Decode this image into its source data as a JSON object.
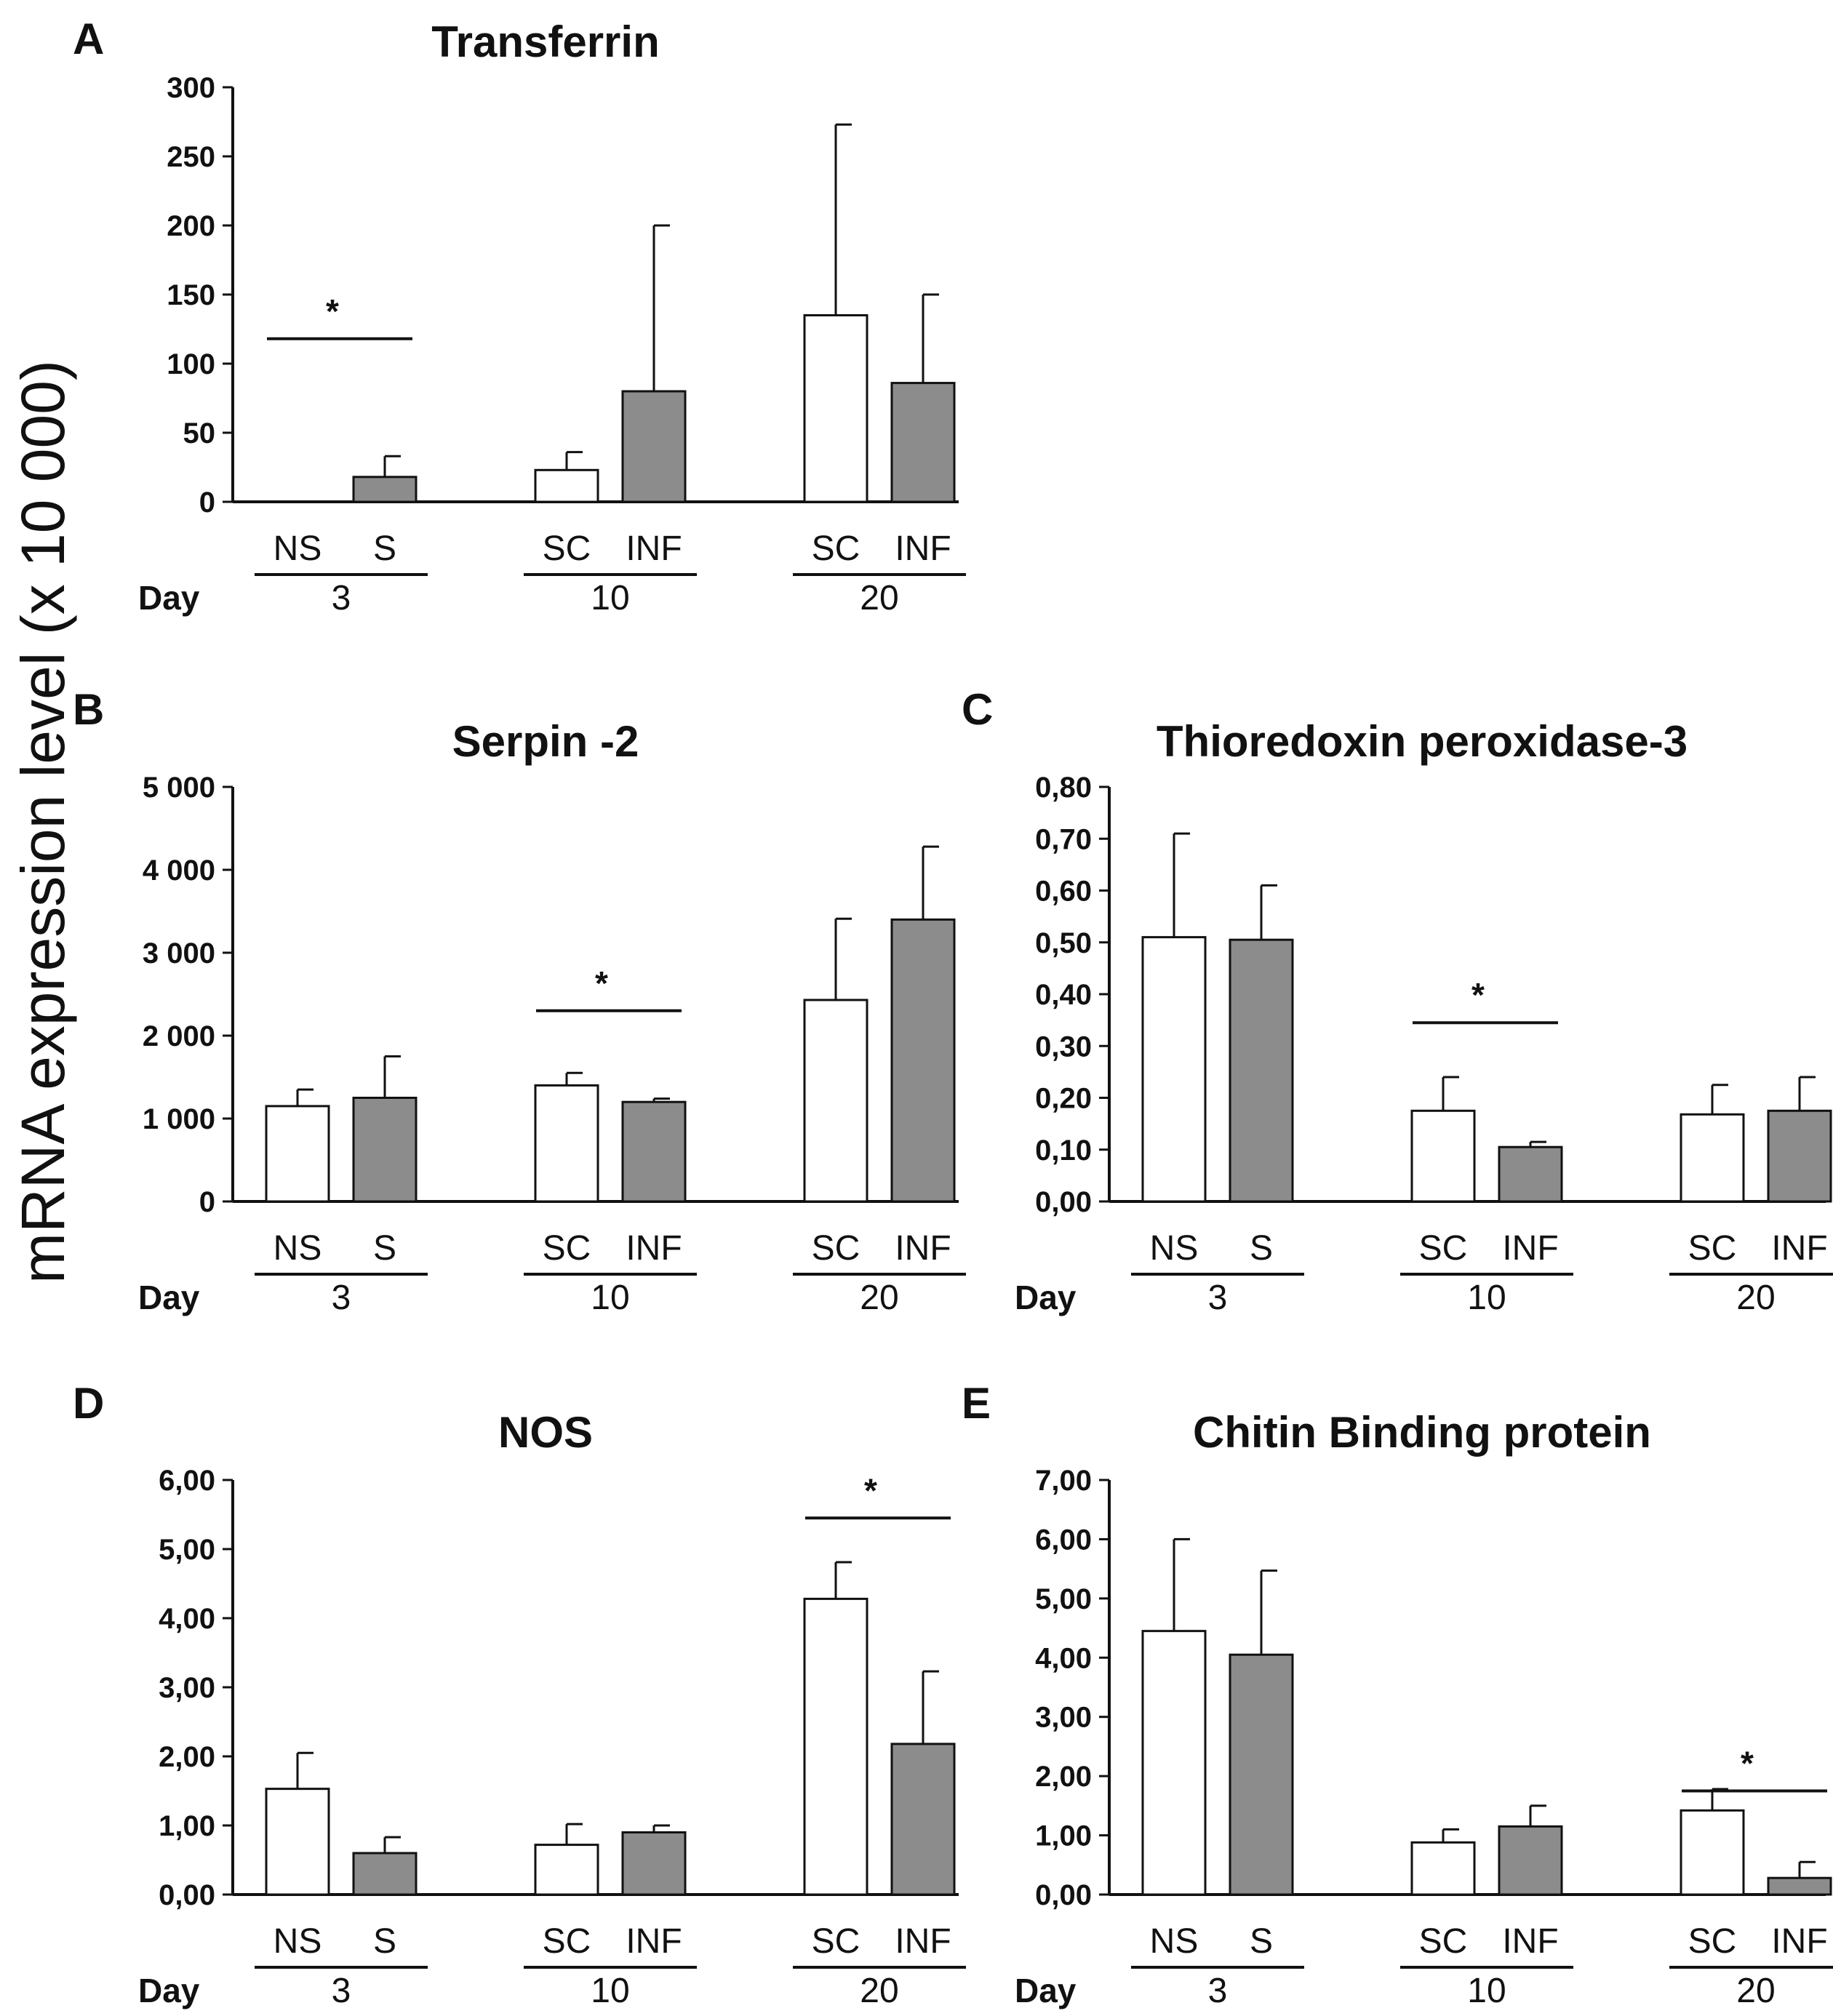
{
  "y_axis_label": "mRNA expression level (x 10 000)",
  "colors": {
    "sc_bar": "#ffffff",
    "inf_bar": "#8c8c8c",
    "ink": "#111111"
  },
  "chart_data": [
    {
      "panel": "A",
      "type": "bar",
      "title": "Transferrin",
      "ylim": [
        0,
        300
      ],
      "yticks": [
        "0",
        "50",
        "100",
        "150",
        "200",
        "250",
        "300"
      ],
      "day_label": "Day",
      "groups": [
        {
          "day": "3",
          "bars": [
            {
              "category": "NS",
              "value": 0,
              "error": 0
            },
            {
              "category": "S",
              "value": 18,
              "error": 15
            }
          ]
        },
        {
          "day": "10",
          "bars": [
            {
              "category": "SC",
              "value": 23,
              "error": 13
            },
            {
              "category": "INF",
              "value": 80,
              "error": 120
            }
          ]
        },
        {
          "day": "20",
          "bars": [
            {
              "category": "SC",
              "value": 135,
              "error": 138
            },
            {
              "category": "INF",
              "value": 86,
              "error": 64
            }
          ]
        }
      ],
      "significance": [
        {
          "group": 0,
          "label": "*"
        }
      ]
    },
    {
      "panel": "B",
      "type": "bar",
      "title": "Serpin  -2",
      "ylim": [
        0,
        5000
      ],
      "yticks": [
        "0",
        "1 000",
        "2 000",
        "3 000",
        "4 000",
        "5 000"
      ],
      "day_label": "Day",
      "groups": [
        {
          "day": "3",
          "bars": [
            {
              "category": "NS",
              "value": 1150,
              "error": 200
            },
            {
              "category": "S",
              "value": 1250,
              "error": 500
            }
          ]
        },
        {
          "day": "10",
          "bars": [
            {
              "category": "SC",
              "value": 1400,
              "error": 150
            },
            {
              "category": "INF",
              "value": 1200,
              "error": 40
            }
          ]
        },
        {
          "day": "20",
          "bars": [
            {
              "category": "SC",
              "value": 2430,
              "error": 980
            },
            {
              "category": "INF",
              "value": 3400,
              "error": 880
            }
          ]
        }
      ],
      "significance": [
        {
          "group": 1,
          "label": "*"
        }
      ]
    },
    {
      "panel": "C",
      "type": "bar",
      "title": "Thioredoxin   peroxidase-3",
      "ylim": [
        0,
        0.8
      ],
      "yticks": [
        "0,00",
        "0,10",
        "0,20",
        "0,30",
        "0,40",
        "0,50",
        "0,60",
        "0,70",
        "0,80"
      ],
      "day_label": "Day",
      "groups": [
        {
          "day": "3",
          "bars": [
            {
              "category": "NS",
              "value": 0.51,
              "error": 0.2
            },
            {
              "category": "S",
              "value": 0.505,
              "error": 0.105
            }
          ]
        },
        {
          "day": "10",
          "bars": [
            {
              "category": "SC",
              "value": 0.175,
              "error": 0.065
            },
            {
              "category": "INF",
              "value": 0.105,
              "error": 0.01
            }
          ]
        },
        {
          "day": "20",
          "bars": [
            {
              "category": "SC",
              "value": 0.168,
              "error": 0.057
            },
            {
              "category": "INF",
              "value": 0.175,
              "error": 0.065
            }
          ]
        }
      ],
      "significance": [
        {
          "group": 1,
          "label": "*"
        }
      ]
    },
    {
      "panel": "D",
      "type": "bar",
      "title": "NOS",
      "ylim": [
        0,
        6
      ],
      "yticks": [
        "0,00",
        "1,00",
        "2,00",
        "3,00",
        "4,00",
        "5,00",
        "6,00"
      ],
      "day_label": "Day",
      "groups": [
        {
          "day": "3",
          "bars": [
            {
              "category": "NS",
              "value": 1.53,
              "error": 0.52
            },
            {
              "category": "S",
              "value": 0.6,
              "error": 0.23
            }
          ]
        },
        {
          "day": "10",
          "bars": [
            {
              "category": "SC",
              "value": 0.72,
              "error": 0.3
            },
            {
              "category": "INF",
              "value": 0.9,
              "error": 0.1
            }
          ]
        },
        {
          "day": "20",
          "bars": [
            {
              "category": "SC",
              "value": 4.28,
              "error": 0.53
            },
            {
              "category": "INF",
              "value": 2.18,
              "error": 1.05
            }
          ]
        }
      ],
      "significance": [
        {
          "group": 2,
          "label": "*"
        }
      ]
    },
    {
      "panel": "E",
      "type": "bar",
      "title": "Chitin Binding protein",
      "ylim": [
        0,
        7
      ],
      "yticks": [
        "0,00",
        "1,00",
        "2,00",
        "3,00",
        "4,00",
        "5,00",
        "6,00",
        "7,00"
      ],
      "day_label": "Day",
      "groups": [
        {
          "day": "3",
          "bars": [
            {
              "category": "NS",
              "value": 4.45,
              "error": 1.55
            },
            {
              "category": "S",
              "value": 4.05,
              "error": 1.42
            }
          ]
        },
        {
          "day": "10",
          "bars": [
            {
              "category": "SC",
              "value": 0.88,
              "error": 0.22
            },
            {
              "category": "INF",
              "value": 1.15,
              "error": 0.35
            }
          ]
        },
        {
          "day": "20",
          "bars": [
            {
              "category": "SC",
              "value": 1.42,
              "error": 0.36
            },
            {
              "category": "INF",
              "value": 0.28,
              "error": 0.27
            }
          ]
        }
      ],
      "significance": [
        {
          "group": 2,
          "label": "*"
        }
      ]
    }
  ]
}
